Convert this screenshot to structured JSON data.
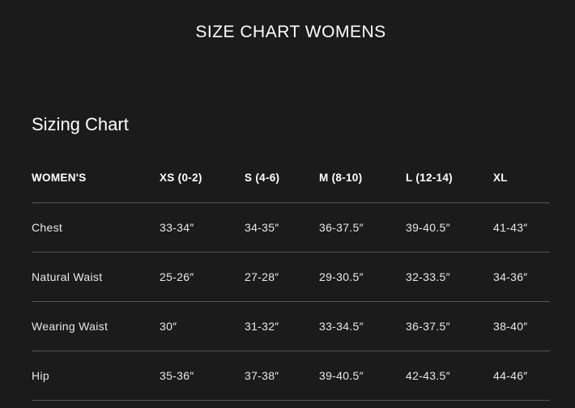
{
  "page_title": "SIZE CHART WOMENS",
  "section_title": "Sizing Chart",
  "table": {
    "headers": [
      "WOMEN'S",
      "XS (0-2)",
      "S (4-6)",
      "M (8-10)",
      "L (12-14)",
      "XL"
    ],
    "rows": [
      [
        "Chest",
        "33-34″",
        "34-35″",
        "36-37.5″",
        "39-40.5″",
        "41-43″"
      ],
      [
        "Natural Waist",
        "25-26″",
        "27-28″",
        "29-30.5″",
        "32-33.5″",
        "34-36″"
      ],
      [
        "Wearing Waist",
        "30″",
        "31-32″",
        "33-34.5″",
        "36-37.5″",
        "38-40″"
      ],
      [
        "Hip",
        "35-36″",
        "37-38″",
        "39-40.5″",
        "42-43.5″",
        "44-46″"
      ]
    ]
  }
}
